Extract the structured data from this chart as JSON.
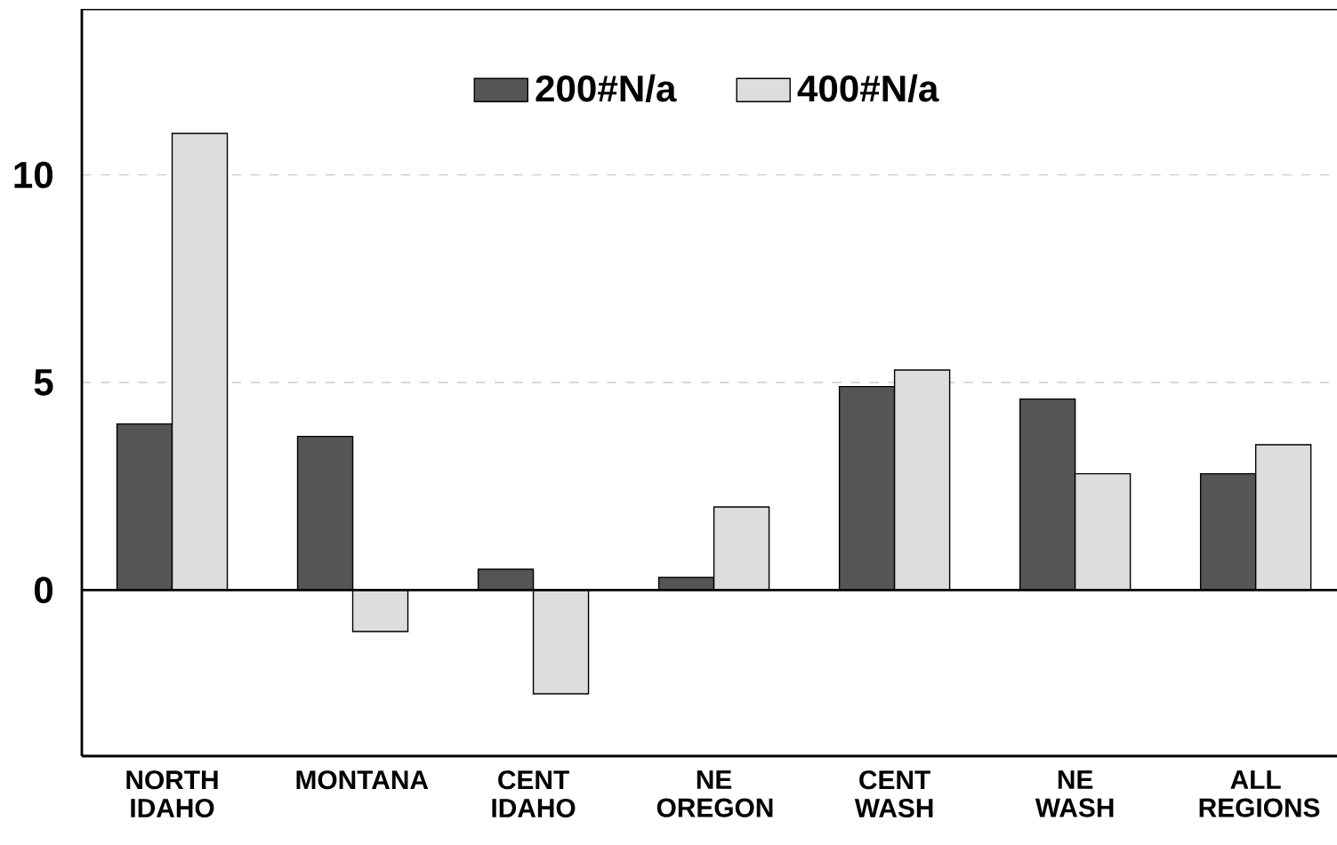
{
  "chart_data": {
    "type": "bar",
    "categories": [
      "NORTH IDAHO",
      "MONTANA",
      "CENT IDAHO",
      "NE OREGON",
      "CENT WASH",
      "NE WASH",
      "ALL REGIONS"
    ],
    "series": [
      {
        "name": "200#N/a",
        "color": "#555555",
        "values": [
          4.0,
          3.7,
          0.5,
          0.3,
          4.9,
          4.6,
          2.8
        ]
      },
      {
        "name": "400#N/a",
        "color": "#dddddd",
        "values": [
          11.0,
          -1.0,
          -2.5,
          2.0,
          5.3,
          2.8,
          3.5
        ]
      }
    ],
    "ylim": [
      -4,
      14
    ],
    "yticks": [
      0,
      5,
      10
    ],
    "grid": "y",
    "legend": "top"
  }
}
